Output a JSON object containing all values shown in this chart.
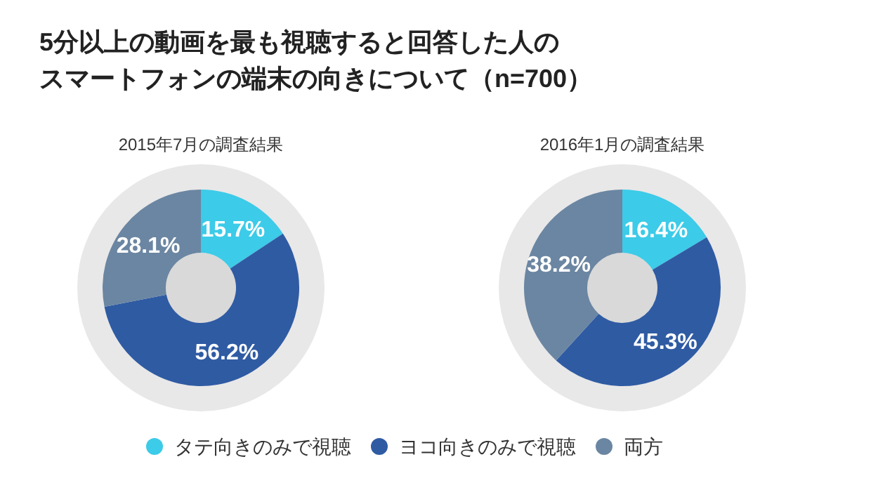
{
  "chart_data": [
    {
      "type": "donut",
      "title": "5分以上の動画を最も視聴すると回答した人の",
      "annotations": [
        "スマートフォンの端末の向きについて（n=700）"
      ],
      "subtitle": "2015年7月の調査結果",
      "categories": [
        "タテ向きのみで視聴",
        "ヨコ向きのみで視聴",
        "両方"
      ],
      "values": [
        15.7,
        56.2,
        28.1
      ],
      "value_labels": [
        "15.7%",
        "56.2%",
        "28.1%"
      ],
      "colors": [
        "#3ccbe8",
        "#2f5ba3",
        "#6b86a2"
      ],
      "legend": "bottom"
    },
    {
      "type": "donut",
      "subtitle": "2016年1月の調査結果",
      "categories": [
        null,
        null,
        null
      ],
      "values": [
        16.4,
        45.3,
        38.2
      ],
      "value_labels": [
        "16.4%",
        "45.3%",
        "38.2%"
      ],
      "colors": [
        "#3ccbe8",
        "#2f5ba3",
        "#6b86a2"
      ]
    }
  ]
}
